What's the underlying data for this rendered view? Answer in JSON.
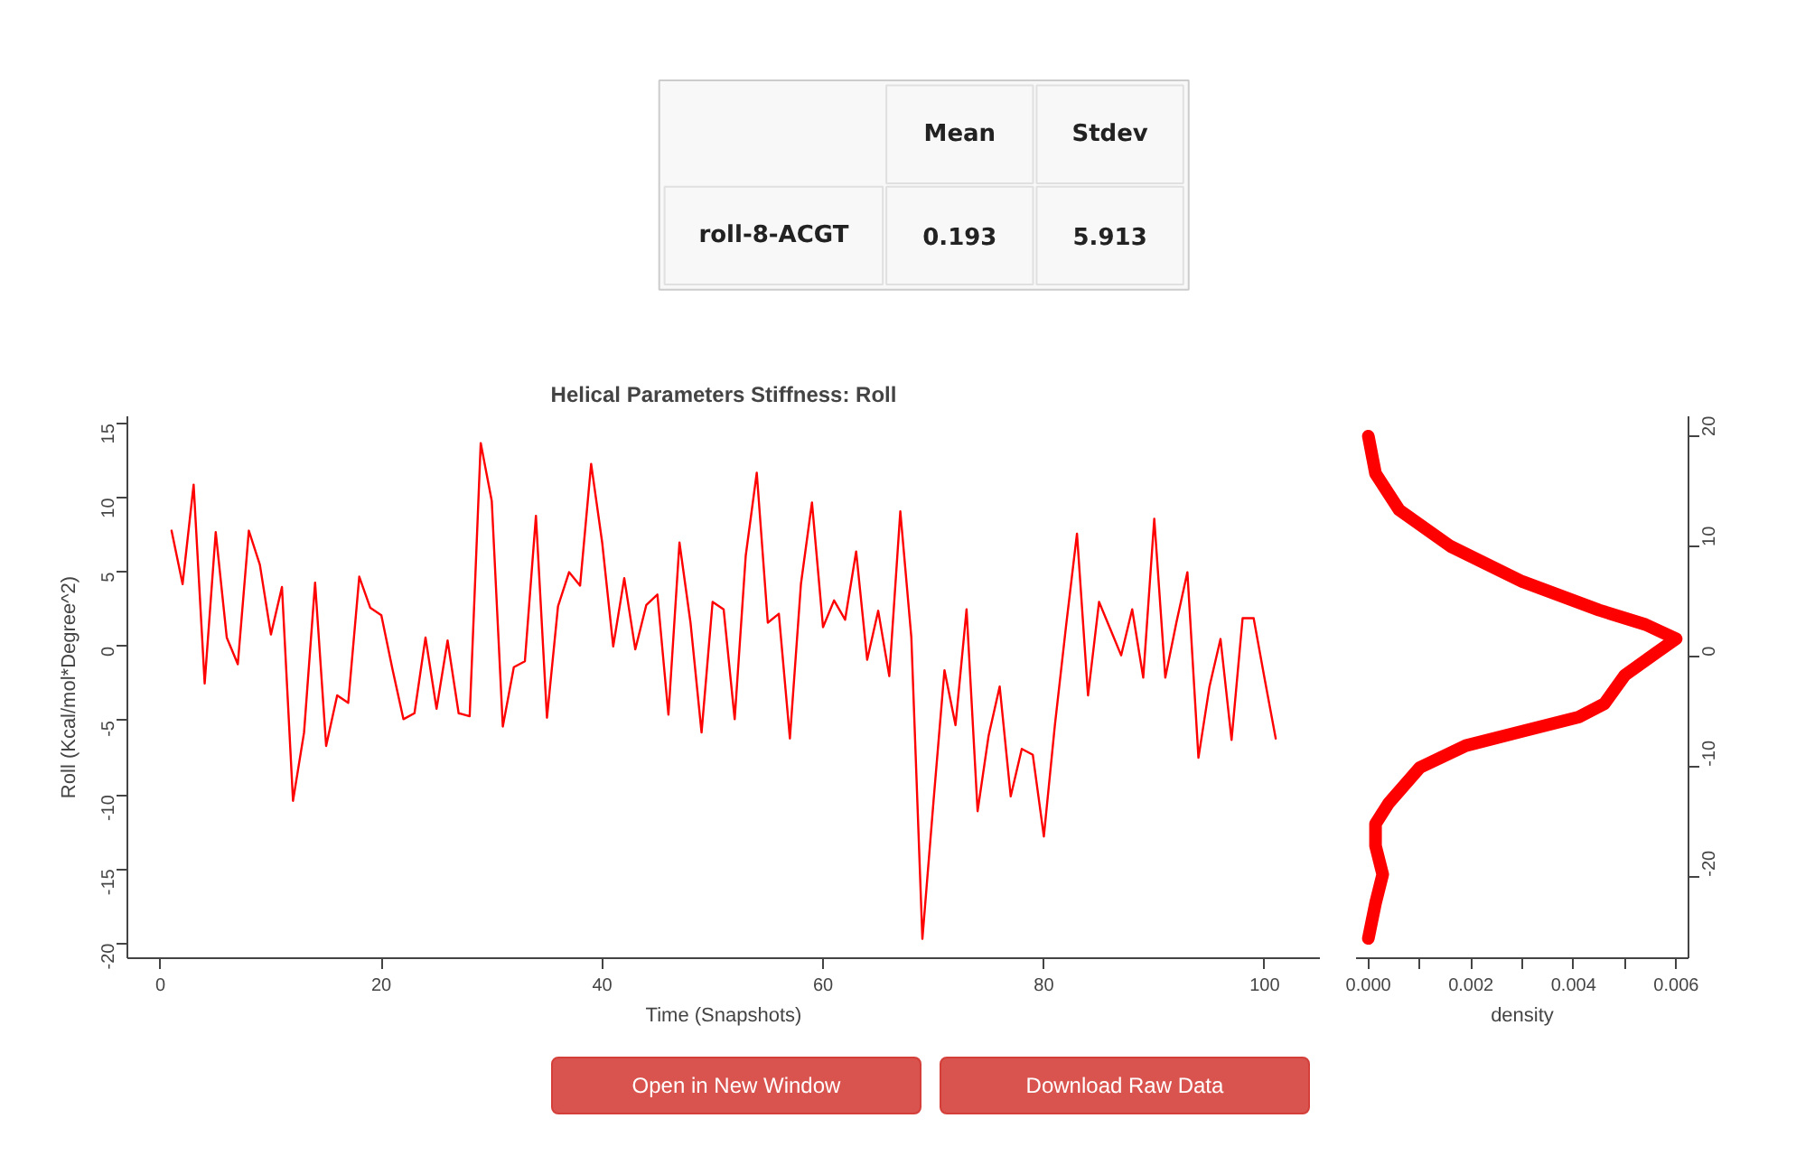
{
  "chart_data": [
    {
      "type": "heatmap",
      "categories": [
        "Mean",
        "Stdev"
      ],
      "y_categories": [
        "roll-8-ACGT"
      ],
      "cells": [
        [
          0.193,
          5.913
        ]
      ],
      "data_labels": true
    },
    {
      "type": "line",
      "title": "Helical Parameters Stiffness: Roll",
      "xlabel": "Time (Snapshots)",
      "ylabel": "Roll (Kcal/mol*Degree^2)",
      "x": [
        1,
        2,
        3,
        4,
        5,
        6,
        7,
        8,
        9,
        10,
        11,
        12,
        13,
        14,
        15,
        16,
        17,
        18,
        19,
        20,
        21,
        22,
        23,
        24,
        25,
        26,
        27,
        28,
        29,
        30,
        31,
        32,
        33,
        34,
        35,
        36,
        37,
        38,
        39,
        40,
        41,
        42,
        43,
        44,
        45,
        46,
        47,
        48,
        49,
        50,
        51,
        52,
        53,
        54,
        55,
        56,
        57,
        58,
        59,
        60,
        61,
        62,
        63,
        64,
        65,
        66,
        67,
        68,
        69,
        70,
        71,
        72,
        73,
        74,
        75,
        76,
        77,
        78,
        79,
        80,
        81,
        82,
        83,
        84,
        85,
        86,
        87,
        88,
        89,
        90,
        91,
        92,
        93,
        94,
        95,
        96,
        97,
        98,
        99,
        100,
        101
      ],
      "series": [
        {
          "color": "#ff0000",
          "values": [
            7.8,
            4.2,
            10.9,
            -2.5,
            7.7,
            0.6,
            -1.2,
            7.8,
            5.5,
            0.8,
            4.0,
            -10.4,
            -5.8,
            4.3,
            -6.7,
            -3.3,
            -3.8,
            4.7,
            2.6,
            2.1,
            -1.5,
            -4.9,
            -4.5,
            0.6,
            -4.2,
            0.4,
            -4.5,
            -4.7,
            13.7,
            9.8,
            -5.4,
            -1.4,
            -1.0,
            8.8,
            -4.8,
            2.7,
            5.0,
            4.1,
            12.3,
            7.0,
            0.0,
            4.6,
            -0.2,
            2.8,
            3.5,
            -4.6,
            7.0,
            1.6,
            -5.8,
            3.0,
            2.5,
            -4.9,
            6.1,
            11.7,
            1.6,
            2.2,
            -6.2,
            4.2,
            9.7,
            1.3,
            3.1,
            1.8,
            6.4,
            -0.9,
            2.4,
            -2.0,
            9.1,
            0.6,
            -19.7,
            -10.5,
            -1.6,
            -5.3,
            2.5,
            -11.1,
            -6.0,
            -2.7,
            -10.1,
            -6.9,
            -7.3,
            -12.8,
            -5.3,
            1.3,
            7.6,
            -3.3,
            3.0,
            1.2,
            -0.6,
            2.5,
            -2.1,
            8.6,
            -2.1,
            1.6,
            5.0,
            -7.5,
            -2.7,
            0.5,
            -6.3,
            1.9,
            1.9,
            -2.2,
            -6.2
          ]
        }
      ],
      "xlim": [
        -3,
        105
      ],
      "xticks": [
        0,
        20,
        40,
        60,
        80,
        100
      ],
      "ylim": [
        -21,
        15.5
      ],
      "yticks": [
        -20,
        -15,
        -10,
        -5,
        0,
        5,
        10,
        15
      ],
      "grid": false,
      "marker": "none",
      "line_style": "solid"
    },
    {
      "type": "line",
      "xlabel": "density",
      "series": [
        {
          "color": "#ff0000",
          "axis": "y2",
          "x": [
            0.0,
            0.00014,
            0.0006,
            0.0016,
            0.003,
            0.0045,
            0.0054,
            0.006,
            0.0056,
            0.005,
            0.0046,
            0.0041,
            0.003,
            0.0019,
            0.001,
            0.0004,
            0.00014,
            0.00014,
            0.00028,
            0.00014,
            0.0
          ],
          "values": [
            20,
            16.6,
            13.3,
            10.0,
            6.8,
            4.2,
            2.9,
            1.6,
            0.3,
            -1.7,
            -4.3,
            -5.5,
            -6.8,
            -8.1,
            -10.1,
            -13.3,
            -15.2,
            -17.2,
            -19.8,
            -22.4,
            -25.6
          ]
        }
      ],
      "xlim": [
        -0.00024,
        0.00624
      ],
      "xticks": [
        {
          "value": 0,
          "label": "0.000"
        },
        {
          "value": 0.001,
          "label": null
        },
        {
          "value": 0.002,
          "label": "0.002"
        },
        {
          "value": 0.003,
          "label": null
        },
        {
          "value": 0.004,
          "label": "0.004"
        },
        {
          "value": 0.005,
          "label": null
        },
        {
          "value": 0.006,
          "label": "0.006"
        }
      ],
      "y2lim": [
        -27.4,
        21.8
      ],
      "y2ticks": [
        -20,
        -10,
        0,
        10,
        20
      ],
      "grid": false,
      "marker": "none",
      "line_style": "solid"
    },
    {
      "type": "other",
      "annotations": [
        "Open in New Window",
        "Download Raw Data"
      ]
    }
  ]
}
